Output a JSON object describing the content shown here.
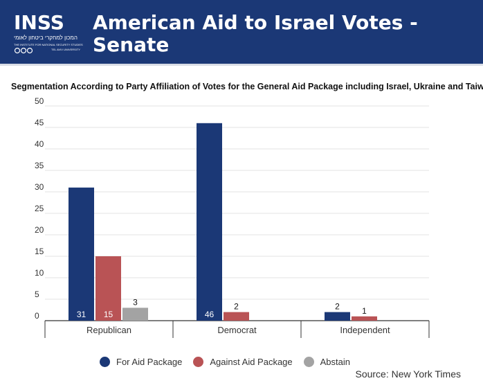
{
  "header": {
    "title": "American Aid to Israel Votes - Senate",
    "logo": {
      "wordmark": "INSS",
      "hebrew_name": "המכון למחקרי ביטחון לאומי",
      "english_name": "THE INSTITUTE FOR NATIONAL SECURITY STUDIES",
      "university": "TEL AVIV UNIVERSITY"
    },
    "colors": {
      "background": "#1b3876",
      "text": "#ffffff"
    }
  },
  "chart_data": {
    "type": "bar",
    "title": "Segmentation According to Party Affiliation of Votes for the  General Aid Package including Israel, Ukraine and Taiwan",
    "categories": [
      "Republican",
      "Democrat",
      "Independent"
    ],
    "series": [
      {
        "name": "For Aid Package",
        "color": "#1b3876",
        "values": [
          31,
          46,
          2
        ],
        "labels": [
          "31",
          "46",
          "2"
        ]
      },
      {
        "name": "Against Aid Package",
        "color": "#b95355",
        "values": [
          15,
          2,
          1
        ],
        "labels": [
          "15",
          "2",
          "1"
        ]
      },
      {
        "name": "Abstain",
        "color": "#a3a3a3",
        "values": [
          3,
          null,
          null
        ],
        "labels": [
          "3",
          "",
          ""
        ]
      }
    ],
    "ylim": [
      0,
      50
    ],
    "yticks": [
      "0",
      "5",
      "10",
      "15",
      "20",
      "25",
      "30",
      "35",
      "40",
      "45",
      "50"
    ],
    "grid": true,
    "legend": "bottom",
    "source": "Source: New York Times"
  }
}
